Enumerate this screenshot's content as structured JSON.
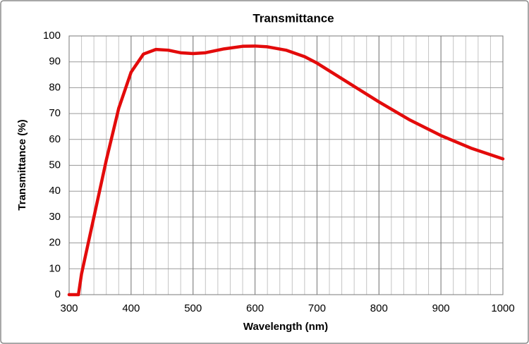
{
  "chart_data": {
    "type": "line",
    "title": "Transmittance",
    "x_label": "Wavelength (nm)",
    "y_label": "Transmittance (%)",
    "x": [
      300,
      312,
      315,
      320,
      340,
      360,
      380,
      400,
      420,
      440,
      460,
      480,
      500,
      520,
      550,
      580,
      600,
      620,
      650,
      680,
      700,
      750,
      800,
      850,
      900,
      950,
      1000
    ],
    "series": [
      {
        "name": "Transmittance",
        "color": "#e30b0b",
        "values": [
          0,
          0,
          0,
          8,
          30,
          52,
          72,
          86,
          93,
          94.8,
          94.5,
          93.5,
          93.2,
          93.5,
          95,
          96,
          96.1,
          95.8,
          94.5,
          92,
          89.5,
          82,
          74.5,
          67.5,
          61.5,
          56.5,
          52.5
        ]
      }
    ],
    "xlim": [
      300,
      1000
    ],
    "xticks": [
      300,
      400,
      500,
      600,
      700,
      800,
      900,
      1000
    ],
    "ylim": [
      0,
      100
    ],
    "yticks": [
      0,
      10,
      20,
      30,
      40,
      50,
      60,
      70,
      80,
      90,
      100
    ],
    "grid": true,
    "minor_x_grid_step": 20
  }
}
